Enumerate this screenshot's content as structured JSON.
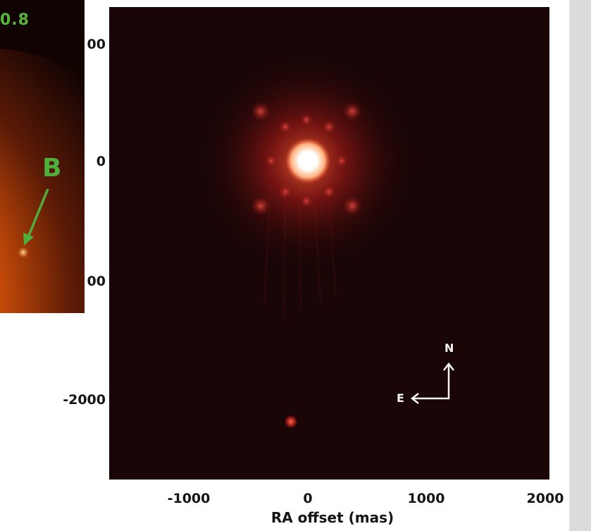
{
  "inset": {
    "value_label": "0.8",
    "companion_label": "B"
  },
  "axes": {
    "y_ticks": [
      "00",
      "0",
      "00",
      "-2000"
    ],
    "x_ticks": [
      "-1000",
      "0",
      "1000",
      "2000"
    ],
    "x_label": "RA offset (mas)"
  },
  "compass": {
    "north": "N",
    "east": "E"
  },
  "colors": {
    "background": "#1b0607",
    "star_core": "#fff4e6",
    "halo": "#c0201b",
    "annotation_green": "#4fae3c",
    "compass": "#f4f4f4"
  }
}
